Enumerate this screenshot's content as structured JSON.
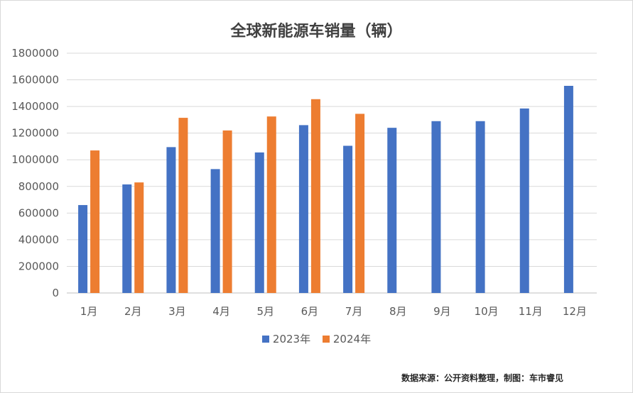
{
  "chart_data": {
    "type": "bar",
    "title": "全球新能源车销量（辆）",
    "categories": [
      "1月",
      "2月",
      "3月",
      "4月",
      "5月",
      "6月",
      "7月",
      "8月",
      "9月",
      "10月",
      "11月",
      "12月"
    ],
    "series": [
      {
        "name": "2023年",
        "color": "#4472c4",
        "values": [
          660000,
          815000,
          1095000,
          930000,
          1055000,
          1260000,
          1105000,
          1240000,
          1290000,
          1290000,
          1385000,
          1555000
        ]
      },
      {
        "name": "2024年",
        "color": "#ed7d31",
        "values": [
          1070000,
          830000,
          1315000,
          1220000,
          1325000,
          1455000,
          1345000,
          null,
          null,
          null,
          null,
          null
        ]
      }
    ],
    "ylim": [
      0,
      1800000
    ],
    "yticks": [
      "0",
      "200000",
      "400000",
      "600000",
      "800000",
      "1000000",
      "1200000",
      "1400000",
      "1600000",
      "1800000"
    ],
    "grid": true,
    "legend_position": "bottom"
  },
  "source_note": "数据来源：公开资料整理，制图：车市睿见"
}
